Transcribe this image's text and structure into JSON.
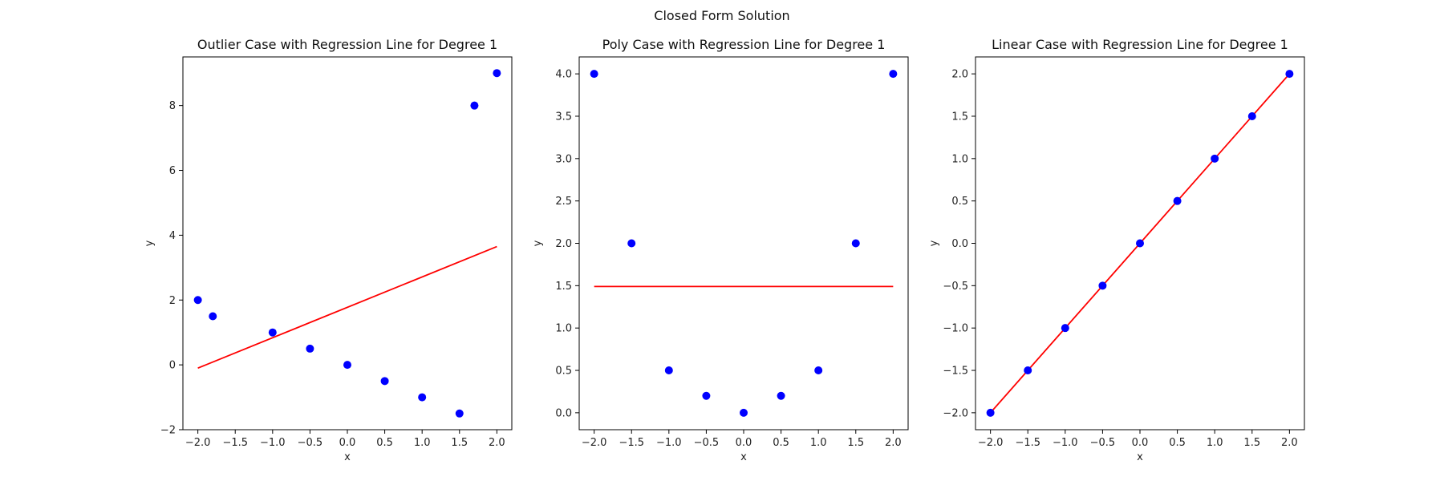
{
  "figure": {
    "suptitle": "Closed Form Solution"
  },
  "chart_data": [
    {
      "type": "scatter",
      "title": "Outlier Case with Regression Line for Degree 1",
      "xlabel": "x",
      "ylabel": "y",
      "xlim": [
        -2.2,
        2.2
      ],
      "ylim": [
        -2.0,
        9.5
      ],
      "xticks": [
        -2.0,
        -1.5,
        -1.0,
        -0.5,
        0.0,
        0.5,
        1.0,
        1.5,
        2.0
      ],
      "xtick_labels": [
        "−2.0",
        "−1.5",
        "−1.0",
        "−0.5",
        "0.0",
        "0.5",
        "1.0",
        "1.5",
        "2.0"
      ],
      "yticks": [
        -2,
        0,
        2,
        4,
        6,
        8
      ],
      "ytick_labels": [
        "−2",
        "0",
        "2",
        "4",
        "6",
        "8"
      ],
      "points": {
        "x": [
          -2.0,
          -1.8,
          -1.0,
          -0.5,
          0.0,
          0.5,
          1.0,
          1.5,
          1.7,
          2.0
        ],
        "y": [
          2.0,
          1.5,
          1.0,
          0.5,
          0.0,
          -0.5,
          -1.0,
          -1.5,
          8.0,
          9.0
        ],
        "color": "#0000ff"
      },
      "regression_line": {
        "x": [
          -2.0,
          2.0
        ],
        "y": [
          -0.1,
          3.65
        ],
        "color": "#ff0000"
      },
      "grid": false
    },
    {
      "type": "scatter",
      "title": "Poly Case with Regression Line for Degree 1",
      "xlabel": "x",
      "ylabel": "y",
      "xlim": [
        -2.2,
        2.2
      ],
      "ylim": [
        -0.2,
        4.2
      ],
      "xticks": [
        -2.0,
        -1.5,
        -1.0,
        -0.5,
        0.0,
        0.5,
        1.0,
        1.5,
        2.0
      ],
      "xtick_labels": [
        "−2.0",
        "−1.5",
        "−1.0",
        "−0.5",
        "0.0",
        "0.5",
        "1.0",
        "1.5",
        "2.0"
      ],
      "yticks": [
        0.0,
        0.5,
        1.0,
        1.5,
        2.0,
        2.5,
        3.0,
        3.5,
        4.0
      ],
      "ytick_labels": [
        "0.0",
        "0.5",
        "1.0",
        "1.5",
        "2.0",
        "2.5",
        "3.0",
        "3.5",
        "4.0"
      ],
      "points": {
        "x": [
          -2.0,
          -1.5,
          -1.0,
          -0.5,
          0.0,
          0.5,
          1.0,
          1.5,
          2.0
        ],
        "y": [
          4.0,
          2.0,
          0.5,
          0.2,
          0.0,
          0.2,
          0.5,
          2.0,
          4.0
        ],
        "color": "#0000ff"
      },
      "regression_line": {
        "x": [
          -2.0,
          2.0
        ],
        "y": [
          1.49,
          1.49
        ],
        "color": "#ff0000"
      },
      "grid": false
    },
    {
      "type": "scatter",
      "title": "Linear Case with Regression Line for Degree 1",
      "xlabel": "x",
      "ylabel": "y",
      "xlim": [
        -2.2,
        2.2
      ],
      "ylim": [
        -2.2,
        2.2
      ],
      "xticks": [
        -2.0,
        -1.5,
        -1.0,
        -0.5,
        0.0,
        0.5,
        1.0,
        1.5,
        2.0
      ],
      "xtick_labels": [
        "−2.0",
        "−1.5",
        "−1.0",
        "−0.5",
        "0.0",
        "0.5",
        "1.0",
        "1.5",
        "2.0"
      ],
      "yticks": [
        -2.0,
        -1.5,
        -1.0,
        -0.5,
        0.0,
        0.5,
        1.0,
        1.5,
        2.0
      ],
      "ytick_labels": [
        "−2.0",
        "−1.5",
        "−1.0",
        "−0.5",
        "0.0",
        "0.5",
        "1.0",
        "1.5",
        "2.0"
      ],
      "points": {
        "x": [
          -2.0,
          -1.5,
          -1.0,
          -0.5,
          0.0,
          0.5,
          1.0,
          1.5,
          2.0
        ],
        "y": [
          -2.0,
          -1.5,
          -1.0,
          -0.5,
          0.0,
          0.5,
          1.0,
          1.5,
          2.0
        ],
        "color": "#0000ff"
      },
      "regression_line": {
        "x": [
          -2.0,
          2.0
        ],
        "y": [
          -2.0,
          2.0
        ],
        "color": "#ff0000"
      },
      "grid": false
    }
  ]
}
